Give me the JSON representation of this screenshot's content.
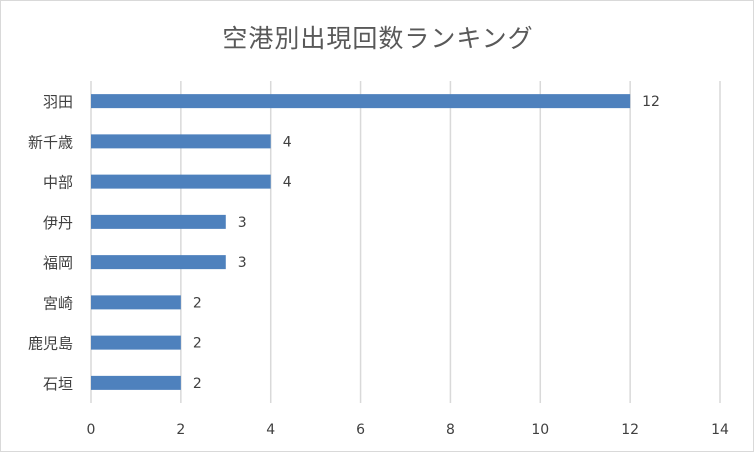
{
  "chart_data": {
    "type": "bar",
    "orientation": "horizontal",
    "title": "空港別出現回数ランキング",
    "xlabel": "",
    "ylabel": "",
    "categories": [
      "羽田",
      "新千歳",
      "中部",
      "伊丹",
      "福岡",
      "宮崎",
      "鹿児島",
      "石垣"
    ],
    "values": [
      12,
      4,
      4,
      3,
      3,
      2,
      2,
      2
    ],
    "xlim": [
      0,
      14
    ],
    "x_ticks": [
      0,
      2,
      4,
      6,
      8,
      10,
      12,
      14
    ],
    "grid": "vertical",
    "legend": "none",
    "data_labels": true,
    "bar_color": "#4e81bd",
    "grid_color": "#d9d9d9",
    "text_color": "#404040"
  }
}
